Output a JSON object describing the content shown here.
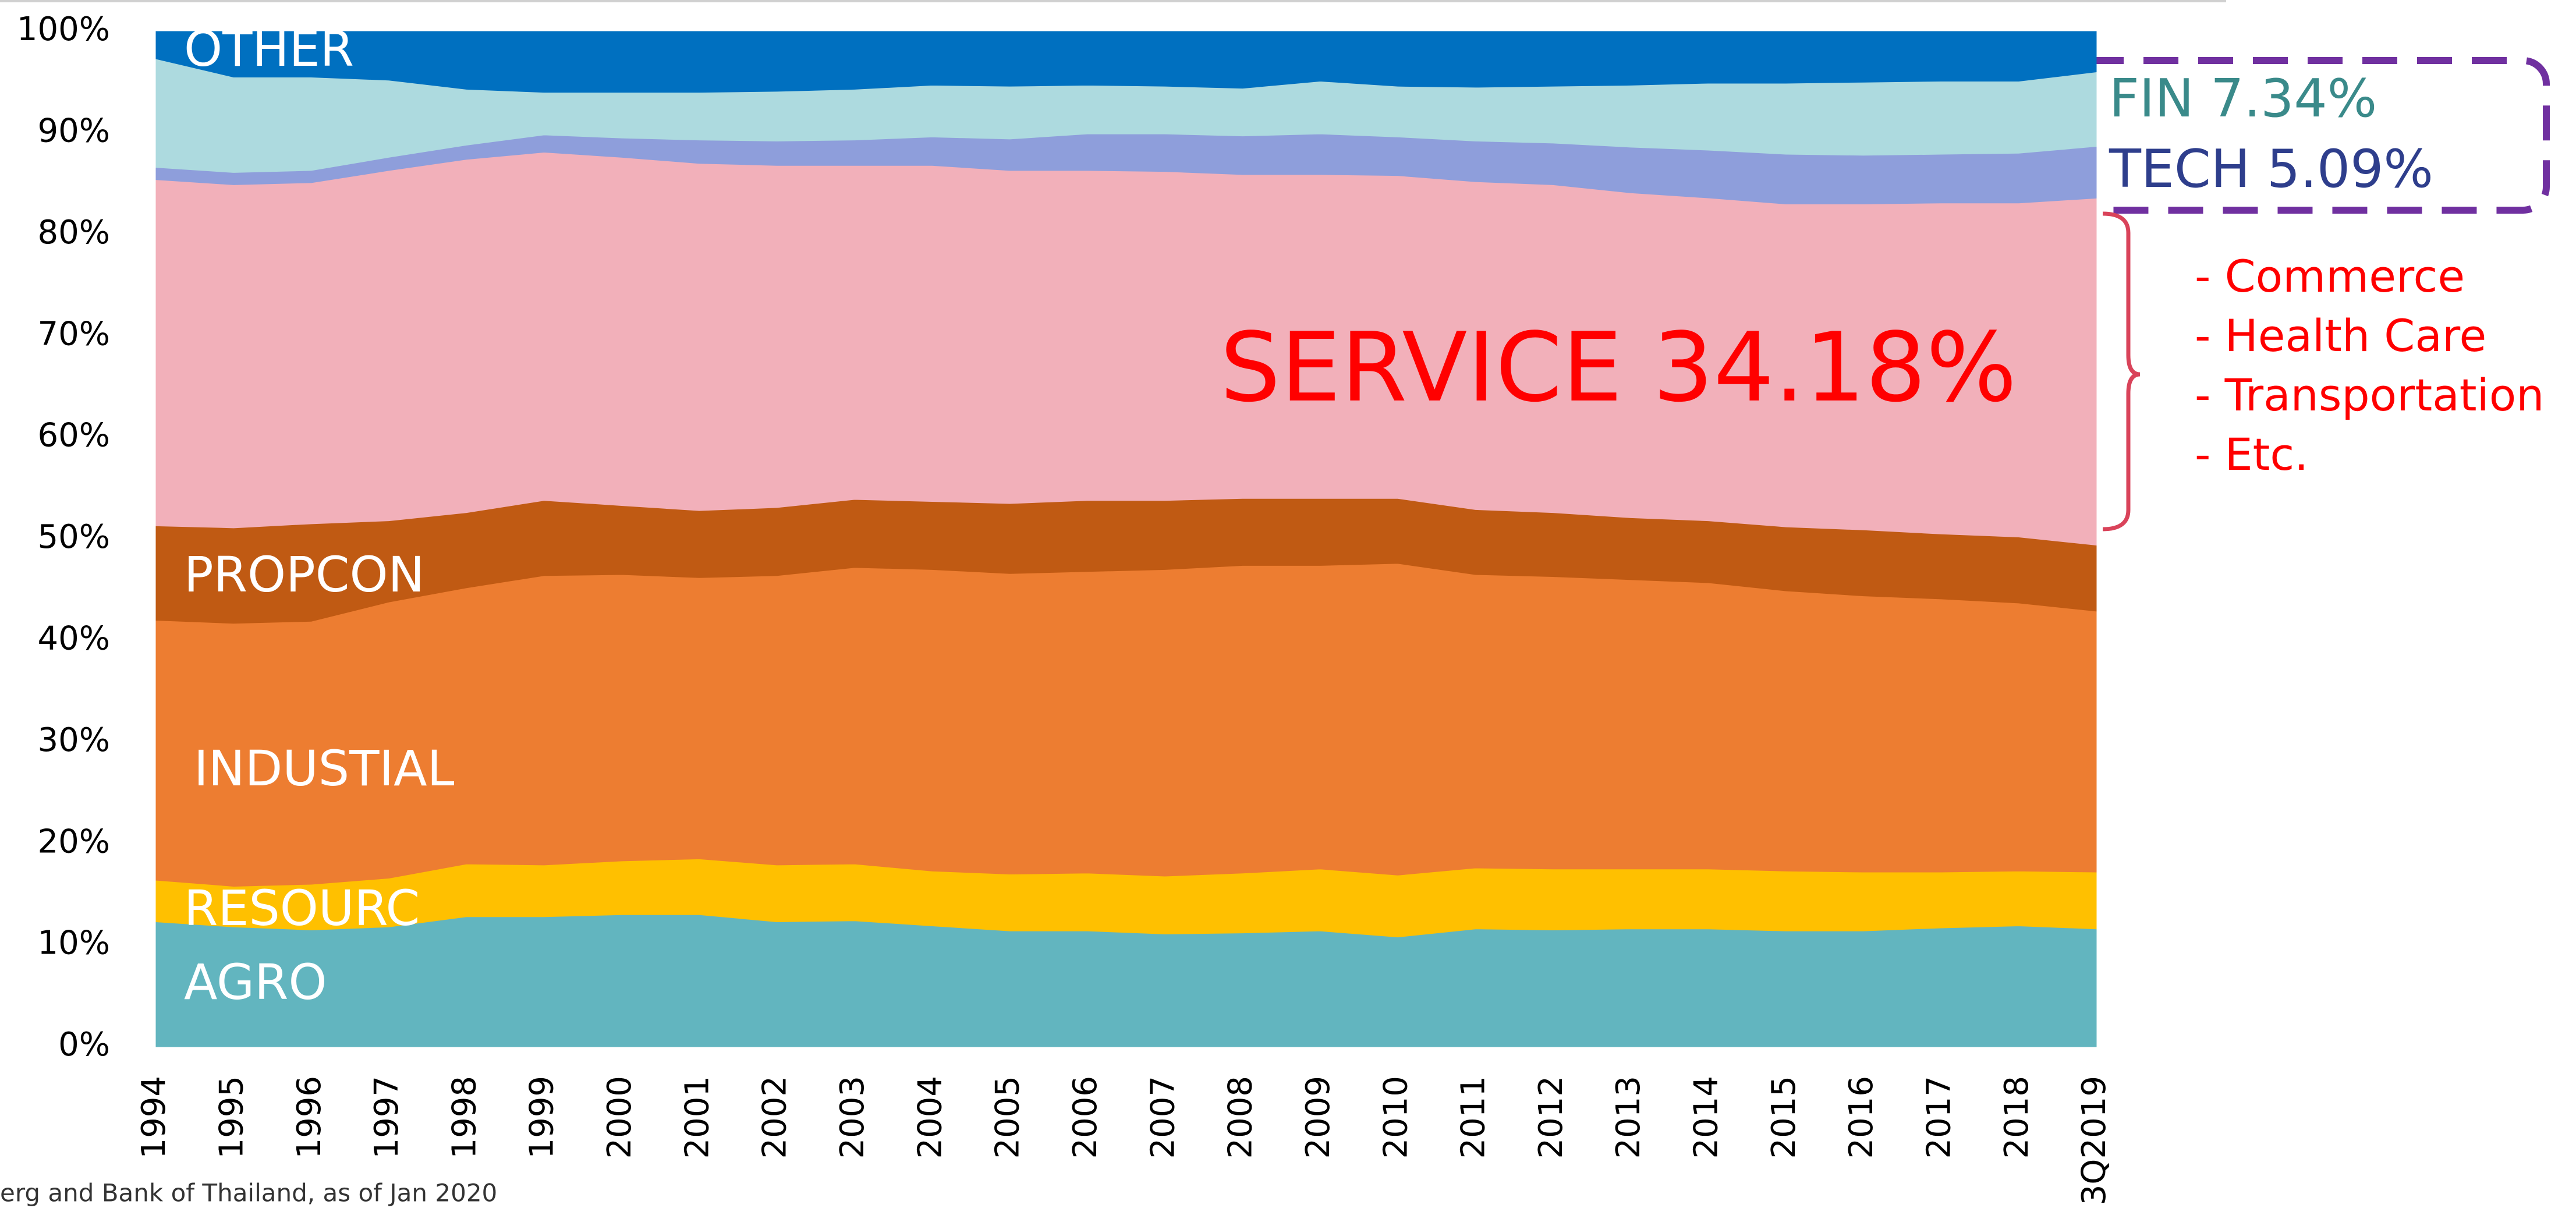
{
  "chart_data": {
    "type": "stacked_area",
    "categories": [
      "1994",
      "1995",
      "1996",
      "1997",
      "1998",
      "1999",
      "2000",
      "2001",
      "2002",
      "2003",
      "2004",
      "2005",
      "2006",
      "2007",
      "2008",
      "2009",
      "2010",
      "2011",
      "2012",
      "2013",
      "2014",
      "2015",
      "2016",
      "2017",
      "2018",
      "3Q2019"
    ],
    "ylim": [
      0,
      100
    ],
    "yticks": [
      {
        "value": 0,
        "label": "0%"
      },
      {
        "value": 10,
        "label": "10%"
      },
      {
        "value": 20,
        "label": "20%"
      },
      {
        "value": 30,
        "label": "30%"
      },
      {
        "value": 40,
        "label": "40%"
      },
      {
        "value": 50,
        "label": "50%"
      },
      {
        "value": 60,
        "label": "60%"
      },
      {
        "value": 70,
        "label": "70%"
      },
      {
        "value": 80,
        "label": "80%"
      },
      {
        "value": 90,
        "label": "90%"
      },
      {
        "value": 100,
        "label": "100%"
      }
    ],
    "series": [
      {
        "name": "AGRO",
        "color": "#62b5bf",
        "values": [
          12.3,
          11.8,
          11.5,
          11.8,
          12.8,
          12.8,
          13.0,
          13.0,
          12.3,
          12.4,
          11.9,
          11.4,
          11.4,
          11.1,
          11.2,
          11.4,
          10.8,
          11.6,
          11.5,
          11.6,
          11.6,
          11.4,
          11.4,
          11.7,
          11.9,
          11.6
        ]
      },
      {
        "name": "RESOURC",
        "color": "#ffc000",
        "values": [
          4.1,
          4.0,
          4.5,
          4.8,
          5.2,
          5.1,
          5.3,
          5.5,
          5.6,
          5.6,
          5.4,
          5.6,
          5.7,
          5.7,
          5.9,
          6.1,
          6.1,
          6.0,
          6.0,
          5.9,
          5.9,
          5.9,
          5.8,
          5.5,
          5.4,
          5.6
        ]
      },
      {
        "name": "INDUSTIAL",
        "color": "#ed7d31",
        "values": [
          25.6,
          25.9,
          25.9,
          27.2,
          27.2,
          28.5,
          28.2,
          27.7,
          28.5,
          29.2,
          29.7,
          29.6,
          29.7,
          30.2,
          30.3,
          29.9,
          30.7,
          28.9,
          28.8,
          28.5,
          28.2,
          27.6,
          27.2,
          26.9,
          26.4,
          25.7
        ]
      },
      {
        "name": "PROPCON",
        "color": "#c05a13",
        "values": [
          9.3,
          9.4,
          9.6,
          8.0,
          7.4,
          7.4,
          6.8,
          6.6,
          6.7,
          6.7,
          6.7,
          6.9,
          7.0,
          6.8,
          6.6,
          6.6,
          6.4,
          6.4,
          6.3,
          6.1,
          6.1,
          6.3,
          6.5,
          6.4,
          6.5,
          6.5
        ]
      },
      {
        "name": "SERVICE 34.18%",
        "color": "#f2b0ba",
        "values": [
          34.1,
          33.8,
          33.6,
          34.5,
          34.8,
          34.3,
          34.3,
          34.2,
          33.7,
          32.9,
          33.1,
          32.8,
          32.5,
          32.4,
          31.9,
          31.9,
          31.8,
          32.3,
          32.3,
          32.0,
          31.8,
          31.8,
          32.1,
          32.6,
          32.9,
          34.18
        ]
      },
      {
        "name": "TECH 5.09%",
        "color": "#8e9edb",
        "values": [
          1.2,
          1.2,
          1.2,
          1.3,
          1.4,
          1.7,
          1.9,
          2.3,
          2.4,
          2.5,
          2.8,
          3.1,
          3.6,
          3.7,
          3.8,
          4.0,
          3.8,
          4.0,
          4.1,
          4.5,
          4.7,
          4.9,
          4.8,
          4.8,
          4.9,
          5.09
        ]
      },
      {
        "name": "FIN 7.34%",
        "color": "#addadf",
        "values": [
          10.7,
          9.4,
          9.2,
          7.6,
          5.5,
          4.2,
          4.5,
          4.7,
          4.9,
          5.0,
          5.1,
          5.2,
          4.8,
          4.7,
          4.7,
          5.2,
          5.0,
          5.3,
          5.6,
          6.1,
          6.6,
          7.0,
          7.2,
          7.2,
          7.1,
          7.34
        ]
      },
      {
        "name": "OTHER",
        "color": "#0070c0",
        "values": [
          2.7,
          4.5,
          4.5,
          4.8,
          5.7,
          6.0,
          6.0,
          6.0,
          5.9,
          5.7,
          5.3,
          5.4,
          5.3,
          5.4,
          5.6,
          4.9,
          5.4,
          5.5,
          5.4,
          5.3,
          5.1,
          5.1,
          5.0,
          4.9,
          4.9,
          3.99
        ]
      }
    ],
    "service_breakdown": [
      "- Commerce",
      "- Health Care",
      "- Transportation",
      "- Etc."
    ],
    "source": "erg and Bank of Thailand, as of Jan 2020"
  }
}
